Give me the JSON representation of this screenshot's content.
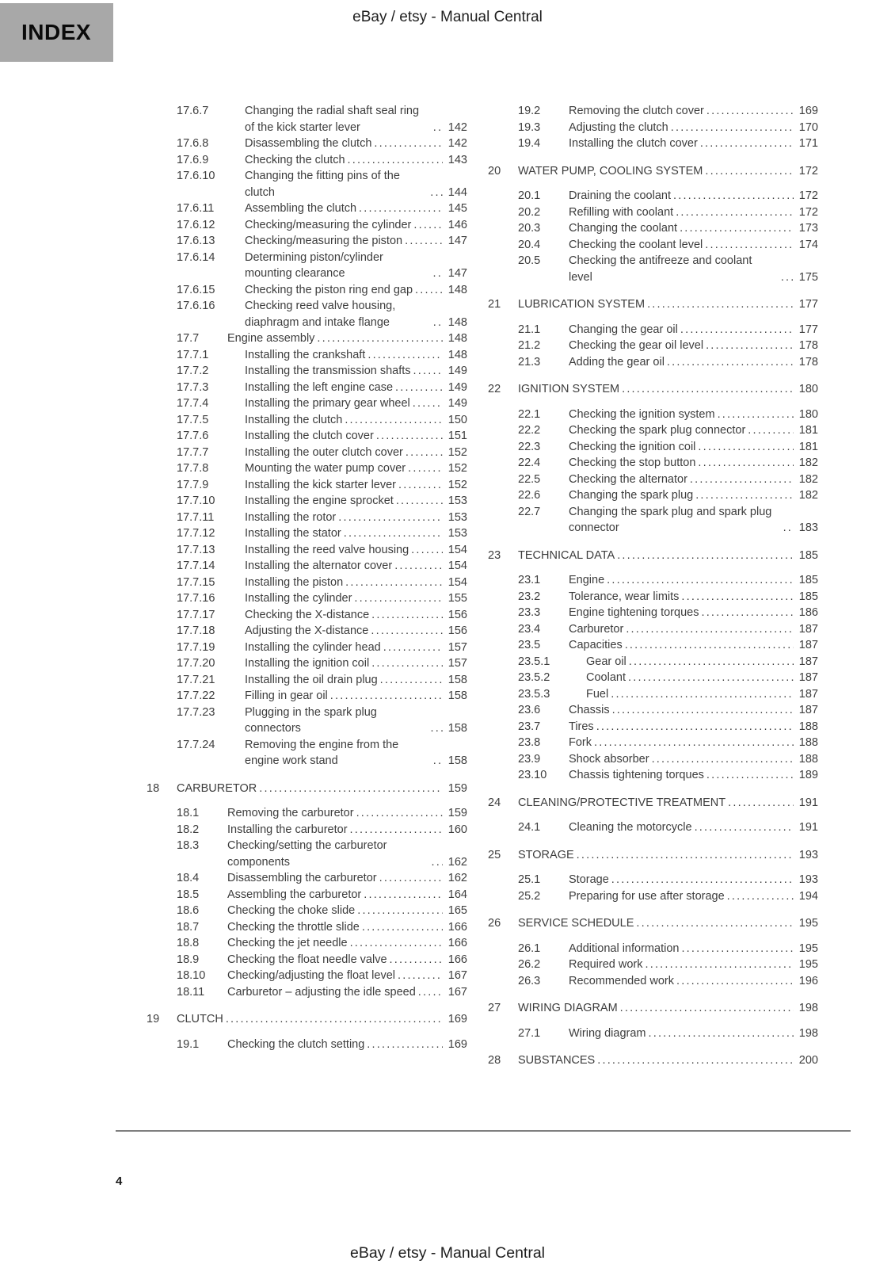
{
  "header": {
    "index_label": "INDEX",
    "title": "eBay / etsy - Manual Central"
  },
  "footer": {
    "page_number": "4",
    "title": "eBay / etsy - Manual Central"
  },
  "colors": {
    "index_box_bg": "#a8a8a8",
    "body_text": "#3d3d3d",
    "rule": "#7f7f7f"
  },
  "toc": {
    "left_column": [
      {
        "level": 3,
        "num": "17.6.7",
        "title": "Changing the radial shaft seal ring of the kick starter lever",
        "page": "142"
      },
      {
        "level": 3,
        "num": "17.6.8",
        "title": "Disassembling the clutch",
        "page": "142"
      },
      {
        "level": 3,
        "num": "17.6.9",
        "title": "Checking the clutch",
        "page": "143"
      },
      {
        "level": 3,
        "num": "17.6.10",
        "title": "Changing the fitting pins of the clutch",
        "page": "144"
      },
      {
        "level": 3,
        "num": "17.6.11",
        "title": "Assembling the clutch",
        "page": "145"
      },
      {
        "level": 3,
        "num": "17.6.12",
        "title": "Checking/measuring the cylinder",
        "page": "146"
      },
      {
        "level": 3,
        "num": "17.6.13",
        "title": "Checking/measuring the piston",
        "page": "147"
      },
      {
        "level": 3,
        "num": "17.6.14",
        "title": "Determining piston/cylinder mounting clearance",
        "page": "147"
      },
      {
        "level": 3,
        "num": "17.6.15",
        "title": "Checking the piston ring end gap",
        "page": "148"
      },
      {
        "level": 3,
        "num": "17.6.16",
        "title": "Checking reed valve housing, diaphragm and intake flange",
        "page": "148"
      },
      {
        "level": 2,
        "num": "17.7",
        "title": "Engine assembly",
        "page": "148"
      },
      {
        "level": 3,
        "num": "17.7.1",
        "title": "Installing the crankshaft",
        "page": "148"
      },
      {
        "level": 3,
        "num": "17.7.2",
        "title": "Installing the transmission shafts",
        "page": "149"
      },
      {
        "level": 3,
        "num": "17.7.3",
        "title": "Installing the left engine case",
        "page": "149"
      },
      {
        "level": 3,
        "num": "17.7.4",
        "title": "Installing the primary gear wheel",
        "page": "149"
      },
      {
        "level": 3,
        "num": "17.7.5",
        "title": "Installing the clutch",
        "page": "150"
      },
      {
        "level": 3,
        "num": "17.7.6",
        "title": "Installing the clutch cover",
        "page": "151"
      },
      {
        "level": 3,
        "num": "17.7.7",
        "title": "Installing the outer clutch cover",
        "page": "152"
      },
      {
        "level": 3,
        "num": "17.7.8",
        "title": "Mounting the water pump cover",
        "page": "152"
      },
      {
        "level": 3,
        "num": "17.7.9",
        "title": "Installing the kick starter lever",
        "page": "152"
      },
      {
        "level": 3,
        "num": "17.7.10",
        "title": "Installing the engine sprocket",
        "page": "153"
      },
      {
        "level": 3,
        "num": "17.7.11",
        "title": "Installing the rotor",
        "page": "153"
      },
      {
        "level": 3,
        "num": "17.7.12",
        "title": "Installing the stator",
        "page": "153"
      },
      {
        "level": 3,
        "num": "17.7.13",
        "title": "Installing the reed valve housing",
        "page": "154"
      },
      {
        "level": 3,
        "num": "17.7.14",
        "title": "Installing the alternator cover",
        "page": "154"
      },
      {
        "level": 3,
        "num": "17.7.15",
        "title": "Installing the piston",
        "page": "154"
      },
      {
        "level": 3,
        "num": "17.7.16",
        "title": "Installing the cylinder",
        "page": "155"
      },
      {
        "level": 3,
        "num": "17.7.17",
        "title": "Checking the X-distance",
        "page": "156"
      },
      {
        "level": 3,
        "num": "17.7.18",
        "title": "Adjusting the X-distance",
        "page": "156"
      },
      {
        "level": 3,
        "num": "17.7.19",
        "title": "Installing the cylinder head",
        "page": "157"
      },
      {
        "level": 3,
        "num": "17.7.20",
        "title": "Installing the ignition coil",
        "page": "157"
      },
      {
        "level": 3,
        "num": "17.7.21",
        "title": "Installing the oil drain plug",
        "page": "158"
      },
      {
        "level": 3,
        "num": "17.7.22",
        "title": "Filling in gear oil",
        "page": "158"
      },
      {
        "level": 3,
        "num": "17.7.23",
        "title": "Plugging in the spark plug connectors",
        "page": "158"
      },
      {
        "level": 3,
        "num": "17.7.24",
        "title": "Removing the engine from the engine work stand",
        "page": "158"
      },
      {
        "level": 1,
        "num": "18",
        "title": "CARBURETOR",
        "page": "159"
      },
      {
        "level": 2,
        "num": "18.1",
        "title": "Removing the carburetor",
        "page": "159"
      },
      {
        "level": 2,
        "num": "18.2",
        "title": "Installing the carburetor",
        "page": "160"
      },
      {
        "level": 2,
        "num": "18.3",
        "title": "Checking/setting the carburetor components",
        "page": "162"
      },
      {
        "level": 2,
        "num": "18.4",
        "title": "Disassembling the carburetor",
        "page": "162"
      },
      {
        "level": 2,
        "num": "18.5",
        "title": "Assembling the carburetor",
        "page": "164"
      },
      {
        "level": 2,
        "num": "18.6",
        "title": "Checking the choke slide",
        "page": "165"
      },
      {
        "level": 2,
        "num": "18.7",
        "title": "Checking the throttle slide",
        "page": "166"
      },
      {
        "level": 2,
        "num": "18.8",
        "title": "Checking the jet needle",
        "page": "166"
      },
      {
        "level": 2,
        "num": "18.9",
        "title": "Checking the float needle valve",
        "page": "166"
      },
      {
        "level": 2,
        "num": "18.10",
        "title": "Checking/adjusting the float level",
        "page": "167"
      },
      {
        "level": 2,
        "num": "18.11",
        "title": "Carburetor – adjusting the idle speed",
        "page": "167"
      },
      {
        "level": 1,
        "num": "19",
        "title": "CLUTCH",
        "page": "169"
      },
      {
        "level": 2,
        "num": "19.1",
        "title": "Checking the clutch setting",
        "page": "169"
      }
    ],
    "right_column": [
      {
        "level": 2,
        "num": "19.2",
        "title": "Removing the clutch cover",
        "page": "169"
      },
      {
        "level": 2,
        "num": "19.3",
        "title": "Adjusting the clutch",
        "page": "170"
      },
      {
        "level": 2,
        "num": "19.4",
        "title": "Installing the clutch cover",
        "page": "171"
      },
      {
        "level": 1,
        "num": "20",
        "title": "WATER PUMP, COOLING SYSTEM",
        "page": "172"
      },
      {
        "level": 2,
        "num": "20.1",
        "title": "Draining the coolant",
        "page": "172"
      },
      {
        "level": 2,
        "num": "20.2",
        "title": "Refilling with coolant",
        "page": "172"
      },
      {
        "level": 2,
        "num": "20.3",
        "title": "Changing the coolant",
        "page": "173"
      },
      {
        "level": 2,
        "num": "20.4",
        "title": "Checking the coolant level",
        "page": "174"
      },
      {
        "level": 2,
        "num": "20.5",
        "title": "Checking the antifreeze and coolant level",
        "page": "175"
      },
      {
        "level": 1,
        "num": "21",
        "title": "LUBRICATION SYSTEM",
        "page": "177"
      },
      {
        "level": 2,
        "num": "21.1",
        "title": "Changing the gear oil",
        "page": "177"
      },
      {
        "level": 2,
        "num": "21.2",
        "title": "Checking the gear oil level",
        "page": "178"
      },
      {
        "level": 2,
        "num": "21.3",
        "title": "Adding the gear oil",
        "page": "178"
      },
      {
        "level": 1,
        "num": "22",
        "title": "IGNITION SYSTEM",
        "page": "180"
      },
      {
        "level": 2,
        "num": "22.1",
        "title": "Checking the ignition system",
        "page": "180"
      },
      {
        "level": 2,
        "num": "22.2",
        "title": "Checking the spark plug connector",
        "page": "181"
      },
      {
        "level": 2,
        "num": "22.3",
        "title": "Checking the ignition coil",
        "page": "181"
      },
      {
        "level": 2,
        "num": "22.4",
        "title": "Checking the stop button",
        "page": "182"
      },
      {
        "level": 2,
        "num": "22.5",
        "title": "Checking the alternator",
        "page": "182"
      },
      {
        "level": 2,
        "num": "22.6",
        "title": "Changing the spark plug",
        "page": "182"
      },
      {
        "level": 2,
        "num": "22.7",
        "title": "Changing the spark plug and spark plug connector",
        "page": "183"
      },
      {
        "level": 1,
        "num": "23",
        "title": "TECHNICAL DATA",
        "page": "185"
      },
      {
        "level": 2,
        "num": "23.1",
        "title": "Engine",
        "page": "185"
      },
      {
        "level": 2,
        "num": "23.2",
        "title": "Tolerance, wear limits",
        "page": "185"
      },
      {
        "level": 2,
        "num": "23.3",
        "title": "Engine tightening torques",
        "page": "186"
      },
      {
        "level": 2,
        "num": "23.4",
        "title": "Carburetor",
        "page": "187"
      },
      {
        "level": 2,
        "num": "23.5",
        "title": "Capacities",
        "page": "187"
      },
      {
        "level": 3,
        "num": "23.5.1",
        "title": "Gear oil",
        "page": "187"
      },
      {
        "level": 3,
        "num": "23.5.2",
        "title": "Coolant",
        "page": "187"
      },
      {
        "level": 3,
        "num": "23.5.3",
        "title": "Fuel",
        "page": "187"
      },
      {
        "level": 2,
        "num": "23.6",
        "title": "Chassis",
        "page": "187"
      },
      {
        "level": 2,
        "num": "23.7",
        "title": "Tires",
        "page": "188"
      },
      {
        "level": 2,
        "num": "23.8",
        "title": "Fork",
        "page": "188"
      },
      {
        "level": 2,
        "num": "23.9",
        "title": "Shock absorber",
        "page": "188"
      },
      {
        "level": 2,
        "num": "23.10",
        "title": "Chassis tightening torques",
        "page": "189"
      },
      {
        "level": 1,
        "num": "24",
        "title": "CLEANING/PROTECTIVE TREATMENT",
        "page": "191"
      },
      {
        "level": 2,
        "num": "24.1",
        "title": "Cleaning the motorcycle",
        "page": "191"
      },
      {
        "level": 1,
        "num": "25",
        "title": "STORAGE",
        "page": "193"
      },
      {
        "level": 2,
        "num": "25.1",
        "title": "Storage",
        "page": "193"
      },
      {
        "level": 2,
        "num": "25.2",
        "title": "Preparing for use after storage",
        "page": "194"
      },
      {
        "level": 1,
        "num": "26",
        "title": "SERVICE SCHEDULE",
        "page": "195"
      },
      {
        "level": 2,
        "num": "26.1",
        "title": "Additional information",
        "page": "195"
      },
      {
        "level": 2,
        "num": "26.2",
        "title": "Required work",
        "page": "195"
      },
      {
        "level": 2,
        "num": "26.3",
        "title": "Recommended work",
        "page": "196"
      },
      {
        "level": 1,
        "num": "27",
        "title": "WIRING DIAGRAM",
        "page": "198"
      },
      {
        "level": 2,
        "num": "27.1",
        "title": "Wiring diagram",
        "page": "198"
      },
      {
        "level": 1,
        "num": "28",
        "title": "SUBSTANCES",
        "page": "200"
      }
    ]
  }
}
